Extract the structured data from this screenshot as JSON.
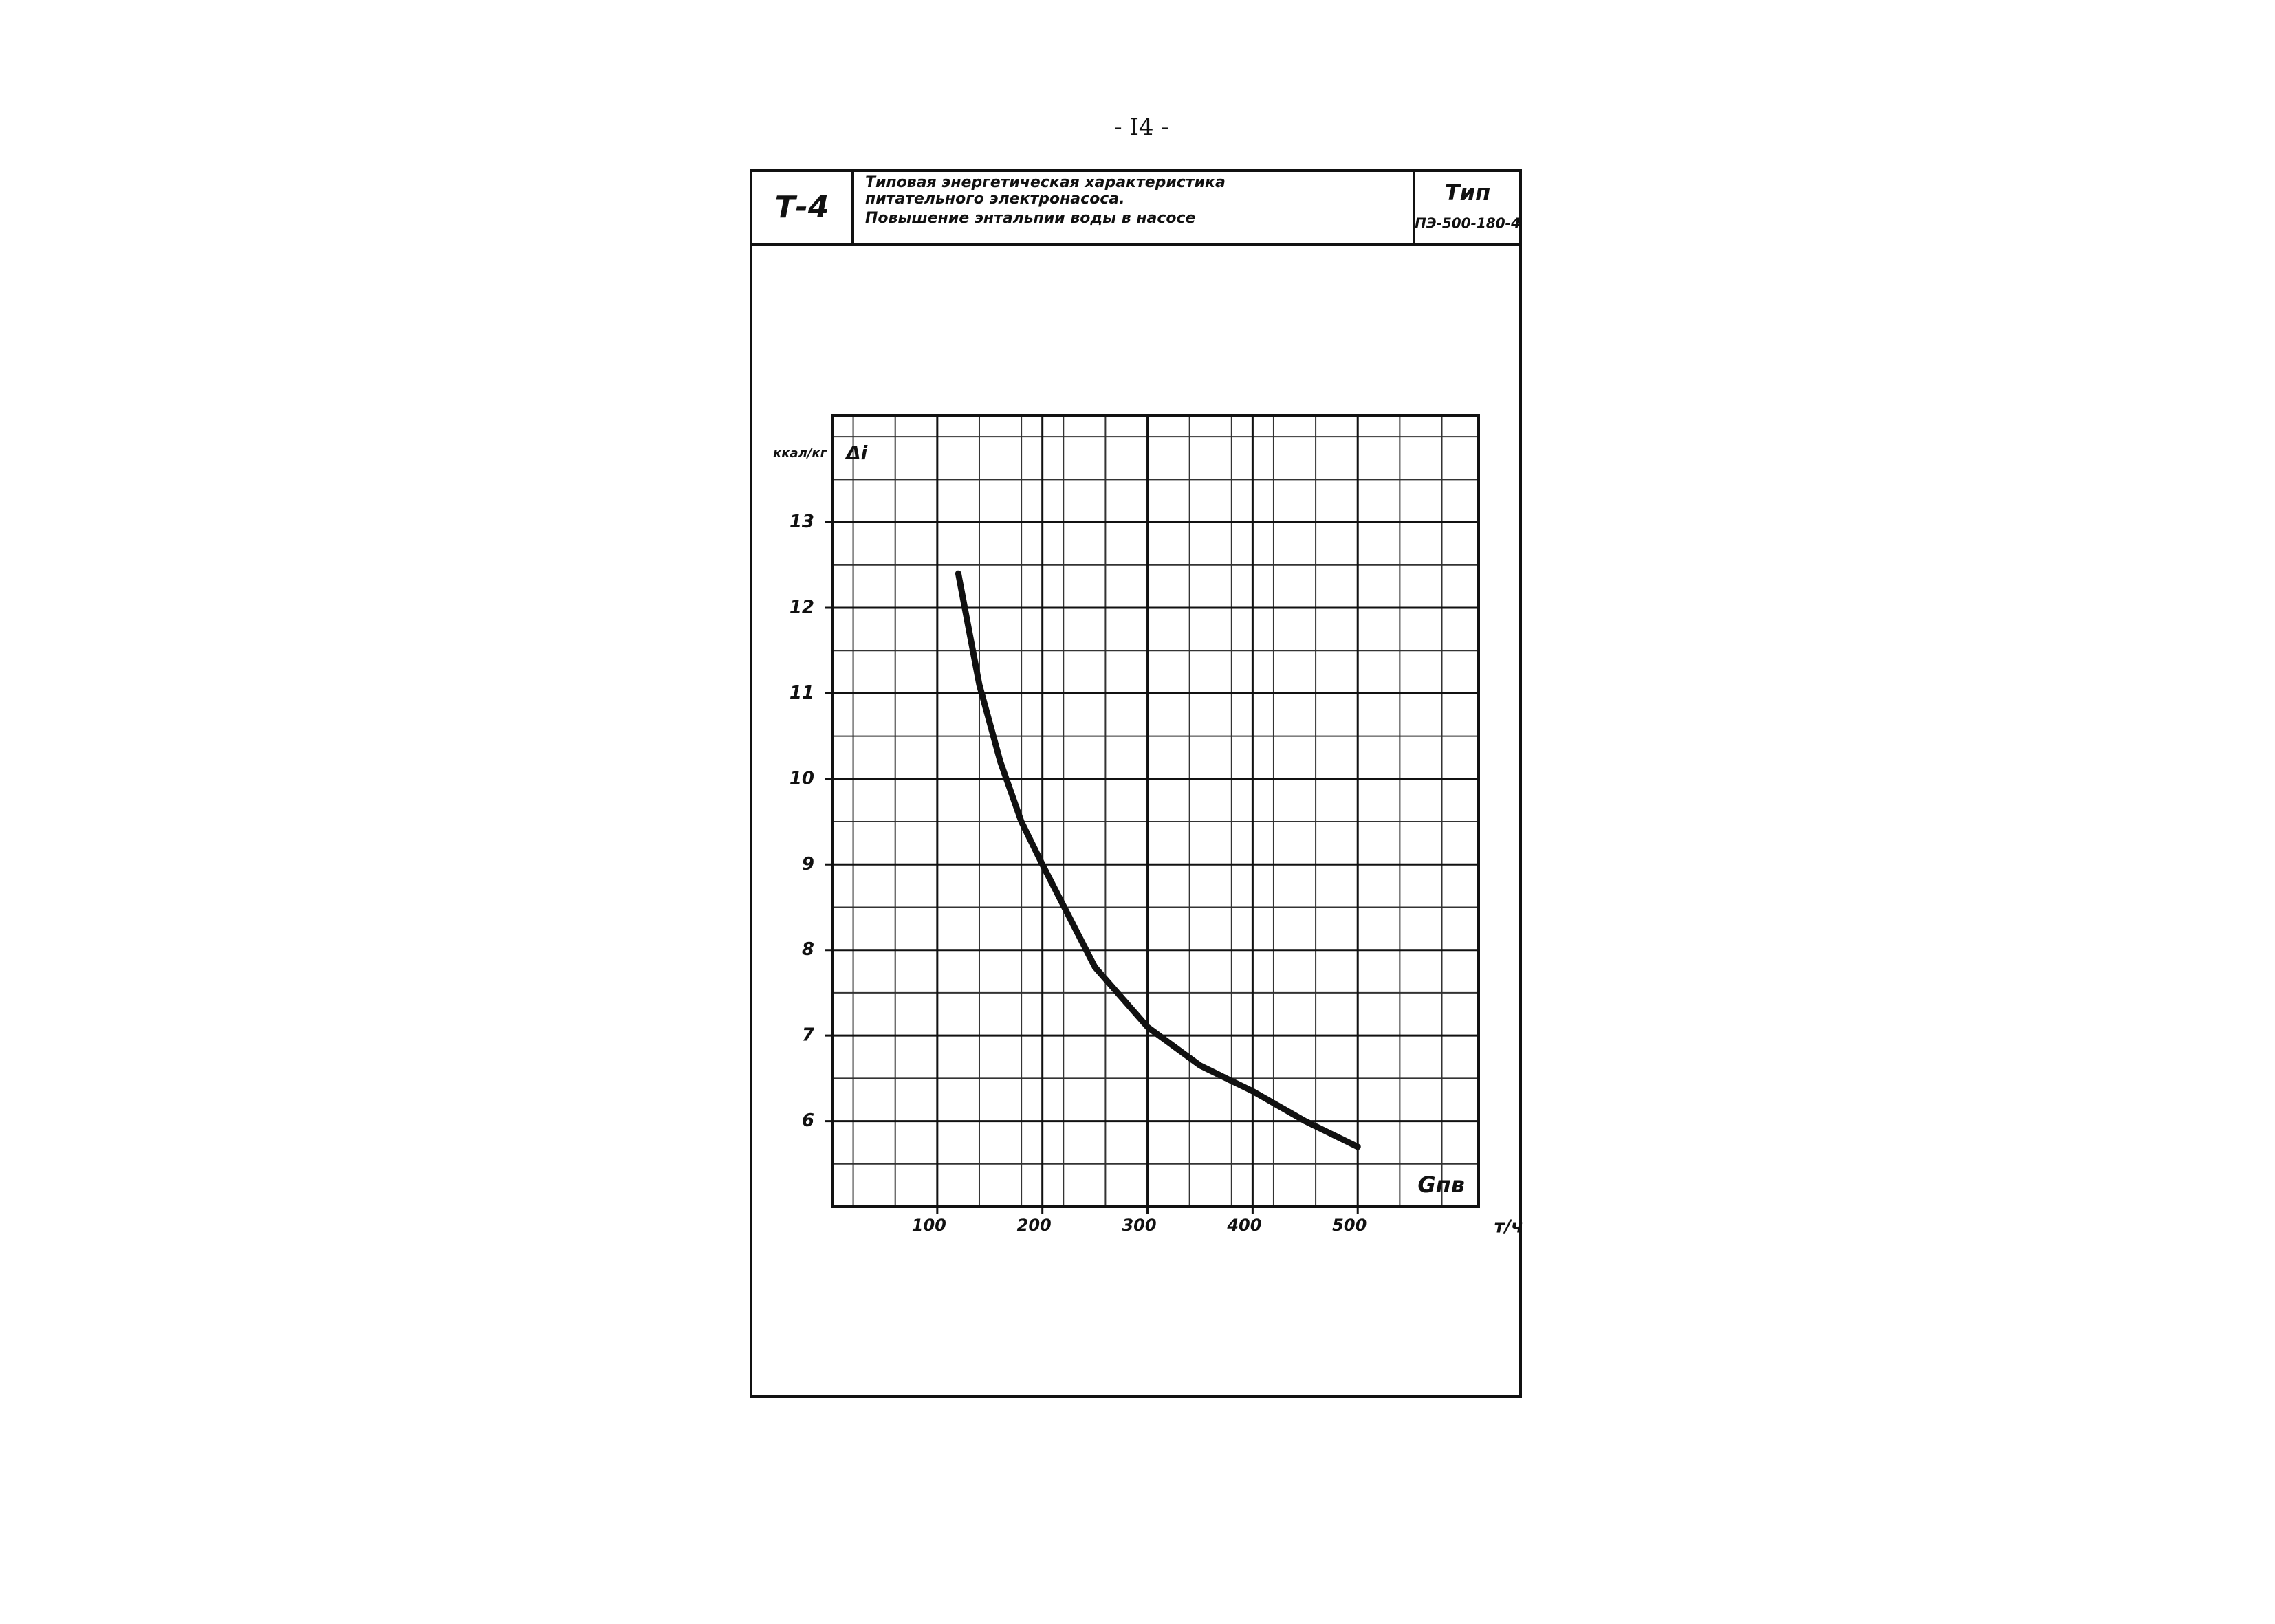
{
  "page_number": "- I4 -",
  "header": {
    "code": "Т-4",
    "title_lines": [
      "Типовая энергетическая характеристика",
      "питательного электронасоса.",
      "Повышение энтальпии воды в насосе"
    ],
    "type_label": "Тип",
    "type_value": "ПЭ-500-180-4"
  },
  "chart_data": {
    "type": "line",
    "y_unit": "ккал/кг",
    "y_label": "Δi",
    "x_label": "Gпв",
    "x_unit": "т/ч",
    "x": [
      120,
      140,
      160,
      180,
      200,
      250,
      300,
      350,
      400,
      450,
      500
    ],
    "series": [
      {
        "color": "#111111",
        "values": [
          12.4,
          11.1,
          10.2,
          9.5,
          9.0,
          7.8,
          7.1,
          6.65,
          6.35,
          6.0,
          5.7
        ]
      }
    ],
    "xlim": [
      0,
      615
    ],
    "ylim": [
      5,
      14.25
    ],
    "xticks": [
      100,
      200,
      300,
      400,
      500
    ],
    "yticks": [
      6,
      7,
      8,
      9,
      10,
      11,
      12,
      13
    ],
    "grid": true
  }
}
